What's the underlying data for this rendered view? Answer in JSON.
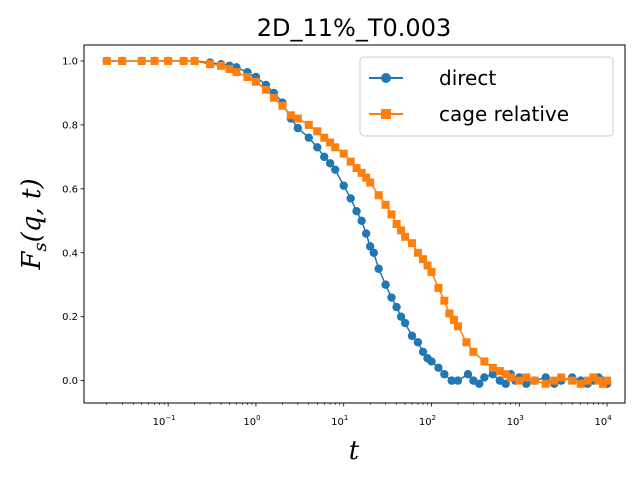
{
  "chart_data": {
    "type": "line",
    "title": "2D_11%_T0.003",
    "xlabel": "t",
    "ylabel": "F_s(q, t)",
    "xscale": "log",
    "xlim": [
      0.011,
      16000
    ],
    "ylim": [
      -0.07,
      1.05
    ],
    "xticks": [
      {
        "value": 0.1,
        "mantissa": "10",
        "exp": "−1"
      },
      {
        "value": 1,
        "mantissa": "10",
        "exp": "0"
      },
      {
        "value": 10,
        "mantissa": "10",
        "exp": "1"
      },
      {
        "value": 100,
        "mantissa": "10",
        "exp": "2"
      },
      {
        "value": 1000,
        "mantissa": "10",
        "exp": "3"
      },
      {
        "value": 10000,
        "mantissa": "10",
        "exp": "4"
      }
    ],
    "yticks": [
      {
        "value": 0.0,
        "label": "0.0"
      },
      {
        "value": 0.2,
        "label": "0.2"
      },
      {
        "value": 0.4,
        "label": "0.4"
      },
      {
        "value": 0.6,
        "label": "0.6"
      },
      {
        "value": 0.8,
        "label": "0.8"
      },
      {
        "value": 1.0,
        "label": "1.0"
      }
    ],
    "legend_position": "upper right",
    "series": [
      {
        "name": "direct",
        "color": "#1f77b4",
        "marker": "circle",
        "points": [
          [
            0.02,
            1.0
          ],
          [
            0.03,
            1.0
          ],
          [
            0.05,
            1.0
          ],
          [
            0.07,
            1.0
          ],
          [
            0.1,
            1.0
          ],
          [
            0.15,
            1.0
          ],
          [
            0.2,
            1.0
          ],
          [
            0.3,
            0.995
          ],
          [
            0.4,
            0.99
          ],
          [
            0.5,
            0.985
          ],
          [
            0.6,
            0.98
          ],
          [
            0.8,
            0.965
          ],
          [
            1.0,
            0.95
          ],
          [
            1.3,
            0.925
          ],
          [
            1.6,
            0.9
          ],
          [
            2.0,
            0.87
          ],
          [
            2.5,
            0.82
          ],
          [
            3.0,
            0.79
          ],
          [
            4.0,
            0.76
          ],
          [
            5.0,
            0.73
          ],
          [
            6.0,
            0.7
          ],
          [
            7.0,
            0.68
          ],
          [
            8.0,
            0.66
          ],
          [
            10,
            0.61
          ],
          [
            12,
            0.57
          ],
          [
            14,
            0.53
          ],
          [
            16,
            0.5
          ],
          [
            18,
            0.46
          ],
          [
            20,
            0.42
          ],
          [
            22,
            0.4
          ],
          [
            25,
            0.35
          ],
          [
            30,
            0.3
          ],
          [
            35,
            0.26
          ],
          [
            40,
            0.23
          ],
          [
            45,
            0.2
          ],
          [
            50,
            0.18
          ],
          [
            60,
            0.14
          ],
          [
            70,
            0.12
          ],
          [
            80,
            0.09
          ],
          [
            90,
            0.07
          ],
          [
            100,
            0.06
          ],
          [
            120,
            0.04
          ],
          [
            140,
            0.02
          ],
          [
            170,
            0.0
          ],
          [
            200,
            0.0
          ],
          [
            260,
            0.02
          ],
          [
            300,
            0.0
          ],
          [
            350,
            -0.01
          ],
          [
            400,
            0.01
          ],
          [
            500,
            0.02
          ],
          [
            600,
            0.0
          ],
          [
            700,
            -0.01
          ],
          [
            800,
            0.02
          ],
          [
            900,
            0.0
          ],
          [
            1000,
            0.01
          ],
          [
            1200,
            -0.01
          ],
          [
            1500,
            0.0
          ],
          [
            2000,
            0.01
          ],
          [
            2500,
            -0.01
          ],
          [
            3000,
            0.0
          ],
          [
            4000,
            0.01
          ],
          [
            5000,
            0.0
          ],
          [
            6000,
            -0.01
          ],
          [
            7000,
            0.0
          ],
          [
            8000,
            0.01
          ],
          [
            9000,
            0.0
          ],
          [
            10000,
            -0.01
          ]
        ]
      },
      {
        "name": "cage relative",
        "color": "#ff7f0e",
        "marker": "square",
        "points": [
          [
            0.02,
            1.0
          ],
          [
            0.03,
            1.0
          ],
          [
            0.05,
            1.0
          ],
          [
            0.07,
            1.0
          ],
          [
            0.1,
            1.0
          ],
          [
            0.15,
            1.0
          ],
          [
            0.2,
            1.0
          ],
          [
            0.3,
            0.99
          ],
          [
            0.4,
            0.985
          ],
          [
            0.5,
            0.975
          ],
          [
            0.6,
            0.965
          ],
          [
            0.8,
            0.95
          ],
          [
            1.0,
            0.935
          ],
          [
            1.3,
            0.91
          ],
          [
            1.6,
            0.885
          ],
          [
            2.0,
            0.86
          ],
          [
            2.5,
            0.83
          ],
          [
            3.0,
            0.82
          ],
          [
            4.0,
            0.8
          ],
          [
            5.0,
            0.78
          ],
          [
            6.0,
            0.76
          ],
          [
            7.0,
            0.745
          ],
          [
            8.0,
            0.73
          ],
          [
            10,
            0.71
          ],
          [
            12,
            0.685
          ],
          [
            14,
            0.665
          ],
          [
            16,
            0.65
          ],
          [
            18,
            0.635
          ],
          [
            20,
            0.62
          ],
          [
            25,
            0.58
          ],
          [
            30,
            0.55
          ],
          [
            35,
            0.52
          ],
          [
            40,
            0.49
          ],
          [
            45,
            0.47
          ],
          [
            50,
            0.45
          ],
          [
            60,
            0.43
          ],
          [
            70,
            0.4
          ],
          [
            80,
            0.38
          ],
          [
            90,
            0.36
          ],
          [
            100,
            0.34
          ],
          [
            120,
            0.29
          ],
          [
            140,
            0.25
          ],
          [
            160,
            0.21
          ],
          [
            180,
            0.19
          ],
          [
            200,
            0.17
          ],
          [
            250,
            0.12
          ],
          [
            300,
            0.09
          ],
          [
            400,
            0.06
          ],
          [
            500,
            0.04
          ],
          [
            600,
            0.03
          ],
          [
            700,
            0.02
          ],
          [
            800,
            0.01
          ],
          [
            1000,
            0.0
          ],
          [
            1200,
            0.01
          ],
          [
            1500,
            0.0
          ],
          [
            2000,
            -0.01
          ],
          [
            2500,
            0.0
          ],
          [
            3000,
            0.01
          ],
          [
            4000,
            0.0
          ],
          [
            5000,
            -0.01
          ],
          [
            6000,
            0.0
          ],
          [
            7000,
            0.01
          ],
          [
            8000,
            0.0
          ],
          [
            9000,
            -0.01
          ],
          [
            10000,
            0.0
          ]
        ]
      }
    ]
  }
}
